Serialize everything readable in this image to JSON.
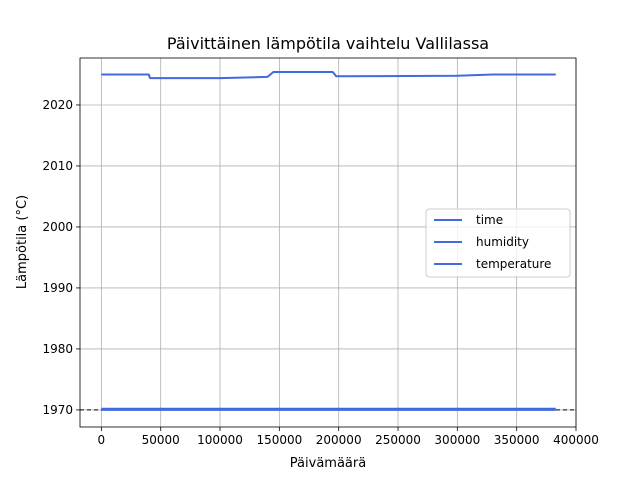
{
  "chart_data": {
    "type": "line",
    "title": "Päivittäinen lämpötila vaihtelu Vallilassa",
    "xlabel": "Päivämäärä",
    "ylabel": "Lämpötila (°C)",
    "xlim": [
      -18000,
      400000
    ],
    "ylim": [
      1967.2,
      2027.7
    ],
    "xticks": [
      0,
      50000,
      100000,
      150000,
      200000,
      250000,
      300000,
      350000,
      400000
    ],
    "yticks": [
      1970,
      1980,
      1990,
      2000,
      2010,
      2020
    ],
    "grid": true,
    "legend_position": "center-right",
    "reference_line": {
      "y": 1970,
      "style": "dashed",
      "color": "#000000"
    },
    "series": [
      {
        "name": "time",
        "color": "#4169e1",
        "x": [
          0,
          40000,
          41000,
          100000,
          140000,
          145000,
          195000,
          198000,
          300000,
          330000,
          383000
        ],
        "y": [
          2025.0,
          2025.0,
          2024.4,
          2024.4,
          2024.6,
          2025.4,
          2025.4,
          2024.7,
          2024.8,
          2025.0,
          2025.0
        ]
      },
      {
        "name": "humidity",
        "color": "#4169e1",
        "x": [
          0,
          383000
        ],
        "y": [
          1970.2,
          1970.2
        ]
      },
      {
        "name": "temperature",
        "color": "#4169e1",
        "x": [
          0,
          383000
        ],
        "y": [
          1970.0,
          1970.0
        ]
      }
    ]
  }
}
